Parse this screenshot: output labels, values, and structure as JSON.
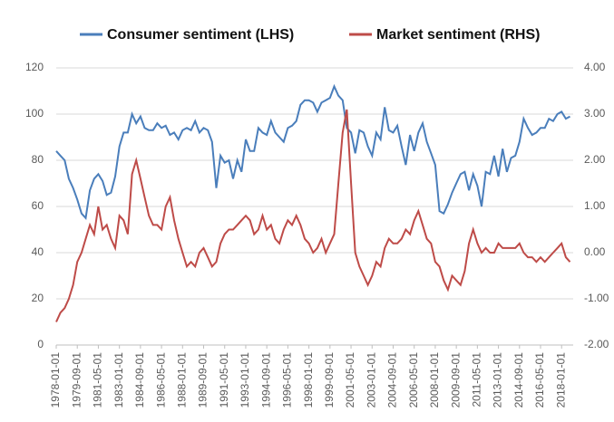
{
  "chart_data": {
    "type": "line",
    "x": [
      "1978-01-01",
      "1978-05-01",
      "1978-09-01",
      "1979-01-01",
      "1979-05-01",
      "1979-09-01",
      "1980-01-01",
      "1980-05-01",
      "1980-09-01",
      "1981-01-01",
      "1981-05-01",
      "1981-09-01",
      "1982-01-01",
      "1982-05-01",
      "1982-09-01",
      "1983-01-01",
      "1983-05-01",
      "1983-09-01",
      "1984-01-01",
      "1984-05-01",
      "1984-09-01",
      "1985-01-01",
      "1985-05-01",
      "1985-09-01",
      "1986-01-01",
      "1986-05-01",
      "1986-09-01",
      "1987-01-01",
      "1987-05-01",
      "1987-09-01",
      "1988-01-01",
      "1988-05-01",
      "1988-09-01",
      "1989-01-01",
      "1989-05-01",
      "1989-09-01",
      "1990-01-01",
      "1990-05-01",
      "1990-09-01",
      "1991-01-01",
      "1991-05-01",
      "1991-09-01",
      "1992-01-01",
      "1992-05-01",
      "1992-09-01",
      "1993-01-01",
      "1993-05-01",
      "1993-09-01",
      "1994-01-01",
      "1994-05-01",
      "1994-09-01",
      "1995-01-01",
      "1995-05-01",
      "1995-09-01",
      "1996-01-01",
      "1996-05-01",
      "1996-09-01",
      "1997-01-01",
      "1997-05-01",
      "1997-09-01",
      "1998-01-01",
      "1998-05-01",
      "1998-09-01",
      "1999-01-01",
      "1999-05-01",
      "1999-09-01",
      "2000-01-01",
      "2000-05-01",
      "2000-09-01",
      "2001-01-01",
      "2001-05-01",
      "2001-09-01",
      "2002-01-01",
      "2002-05-01",
      "2002-09-01",
      "2003-01-01",
      "2003-05-01",
      "2003-09-01",
      "2004-01-01",
      "2004-05-01",
      "2004-09-01",
      "2005-01-01",
      "2005-05-01",
      "2005-09-01",
      "2006-01-01",
      "2006-05-01",
      "2006-09-01",
      "2007-01-01",
      "2007-05-01",
      "2007-09-01",
      "2008-01-01",
      "2008-05-01",
      "2008-09-01",
      "2009-01-01",
      "2009-05-01",
      "2009-09-01",
      "2010-01-01",
      "2010-05-01",
      "2010-09-01",
      "2011-01-01",
      "2011-05-01",
      "2011-09-01",
      "2012-01-01",
      "2012-05-01",
      "2012-09-01",
      "2013-01-01",
      "2013-05-01",
      "2013-09-01",
      "2014-01-01",
      "2014-05-01",
      "2014-09-01",
      "2015-01-01",
      "2015-05-01",
      "2015-09-01",
      "2016-01-01",
      "2016-05-01",
      "2016-09-01",
      "2017-01-01",
      "2017-05-01",
      "2017-09-01",
      "2018-01-01",
      "2018-05-01",
      "2018-09-01"
    ],
    "series": [
      {
        "name": "Consumer sentiment (LHS)",
        "color": "#4a7ebb",
        "values": [
          84,
          82,
          80,
          72,
          68,
          63,
          57,
          55,
          67,
          72,
          74,
          71,
          65,
          66,
          73,
          86,
          92,
          92,
          100,
          96,
          99,
          94,
          93,
          93,
          96,
          94,
          95,
          91,
          92,
          89,
          93,
          94,
          93,
          97,
          92,
          94,
          93,
          88,
          68,
          82,
          79,
          80,
          72,
          80,
          75,
          89,
          84,
          84,
          94,
          92,
          91,
          97,
          92,
          90,
          88,
          94,
          95,
          97,
          104,
          106,
          106,
          105,
          101,
          105,
          106,
          107,
          112,
          108,
          106,
          94,
          92,
          83,
          93,
          92,
          86,
          82,
          92,
          89,
          103,
          93,
          92,
          95,
          86,
          78,
          91,
          84,
          92,
          96,
          88,
          83,
          78,
          58,
          57,
          61,
          66,
          70,
          74,
          75,
          67,
          74,
          69,
          60,
          75,
          74,
          82,
          73,
          85,
          75,
          81,
          82,
          88,
          98,
          94,
          91,
          92,
          94,
          94,
          98,
          97,
          100,
          101,
          98,
          99
        ]
      },
      {
        "name": "Market sentiment (RHS)",
        "color": "#be4b48",
        "axis": "y2",
        "values": [
          -1.5,
          -1.3,
          -1.2,
          -1.0,
          -0.7,
          -0.2,
          0.0,
          0.3,
          0.6,
          0.4,
          1.0,
          0.5,
          0.6,
          0.3,
          0.1,
          0.8,
          0.7,
          0.4,
          1.7,
          2.0,
          1.6,
          1.2,
          0.8,
          0.6,
          0.6,
          0.5,
          1.0,
          1.2,
          0.7,
          0.3,
          0.0,
          -0.3,
          -0.2,
          -0.3,
          0.0,
          0.1,
          -0.1,
          -0.3,
          -0.2,
          0.2,
          0.4,
          0.5,
          0.5,
          0.6,
          0.7,
          0.8,
          0.7,
          0.4,
          0.5,
          0.8,
          0.5,
          0.6,
          0.3,
          0.2,
          0.5,
          0.7,
          0.6,
          0.8,
          0.6,
          0.3,
          0.2,
          0.0,
          0.1,
          0.3,
          0.0,
          0.2,
          0.4,
          1.5,
          2.6,
          3.1,
          1.5,
          0.0,
          -0.3,
          -0.5,
          -0.7,
          -0.5,
          -0.2,
          -0.3,
          0.1,
          0.3,
          0.2,
          0.2,
          0.3,
          0.5,
          0.4,
          0.7,
          0.9,
          0.6,
          0.3,
          0.2,
          -0.2,
          -0.3,
          -0.6,
          -0.8,
          -0.5,
          -0.6,
          -0.7,
          -0.4,
          0.2,
          0.5,
          0.2,
          0.0,
          0.1,
          0.0,
          0.0,
          0.2,
          0.1,
          0.1,
          0.1,
          0.1,
          0.2,
          0.0,
          -0.1,
          -0.1,
          -0.2,
          -0.1,
          -0.2,
          -0.1,
          0.0,
          0.1,
          0.2,
          -0.1,
          -0.2
        ]
      }
    ],
    "xlim": [
      "1978-01-01",
      "2018-12-01"
    ],
    "xticks": [
      "1978-01-01",
      "1979-09-01",
      "1981-05-01",
      "1983-01-01",
      "1984-09-01",
      "1986-05-01",
      "1988-01-01",
      "1989-09-01",
      "1991-05-01",
      "1993-01-01",
      "1994-09-01",
      "1996-05-01",
      "1998-01-01",
      "1999-09-01",
      "2001-05-01",
      "2003-01-01",
      "2004-09-01",
      "2006-05-01",
      "2008-01-01",
      "2009-09-01",
      "2011-05-01",
      "2013-01-01",
      "2014-09-01",
      "2016-05-01",
      "2018-01-01"
    ],
    "ylim": [
      0,
      120
    ],
    "yticks": [
      0,
      20,
      40,
      60,
      80,
      100,
      120
    ],
    "y2lim": [
      -2,
      4
    ],
    "y2ticks": [
      {
        "value": -2,
        "label": "-2.00"
      },
      {
        "value": -1,
        "label": "-1.00"
      },
      {
        "value": 0,
        "label": "0.00"
      },
      {
        "value": 1,
        "label": "1.00"
      },
      {
        "value": 2,
        "label": "2.00"
      },
      {
        "value": 3,
        "label": "3.00"
      },
      {
        "value": 4,
        "label": "4.00"
      }
    ],
    "grid": true
  }
}
